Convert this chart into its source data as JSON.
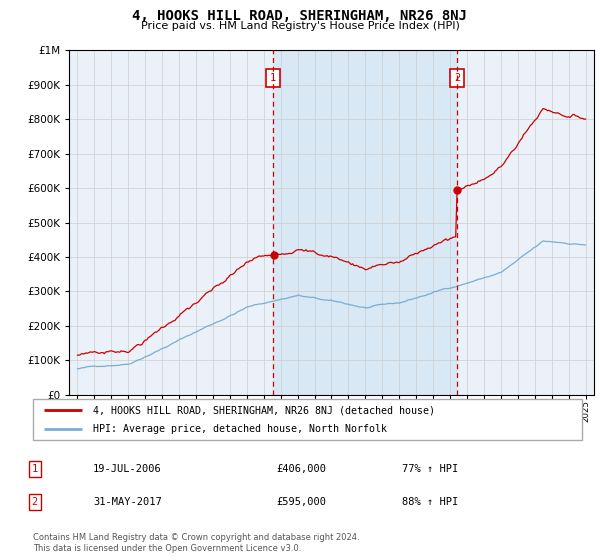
{
  "title": "4, HOOKS HILL ROAD, SHERINGHAM, NR26 8NJ",
  "subtitle": "Price paid vs. HM Land Registry's House Price Index (HPI)",
  "legend_line1": "4, HOOKS HILL ROAD, SHERINGHAM, NR26 8NJ (detached house)",
  "legend_line2": "HPI: Average price, detached house, North Norfolk",
  "annotation1_label": "1",
  "annotation1_date": "19-JUL-2006",
  "annotation1_price": "£406,000",
  "annotation1_hpi": "77% ↑ HPI",
  "annotation2_label": "2",
  "annotation2_date": "31-MAY-2017",
  "annotation2_price": "£595,000",
  "annotation2_hpi": "88% ↑ HPI",
  "footer": "Contains HM Land Registry data © Crown copyright and database right 2024.\nThis data is licensed under the Open Government Licence v3.0.",
  "sale1_year": 2006.55,
  "sale1_value": 406000,
  "sale2_year": 2017.42,
  "sale2_value": 595000,
  "hpi_color": "#7aadd4",
  "property_color": "#cc0000",
  "span_color": "#d8e8f4",
  "plot_bg": "#eaf1f8",
  "ylim_max": 1000000,
  "xlim_min": 1994.5,
  "xlim_max": 2025.5,
  "yticks": [
    0,
    100000,
    200000,
    300000,
    400000,
    500000,
    600000,
    700000,
    800000,
    900000,
    1000000
  ]
}
